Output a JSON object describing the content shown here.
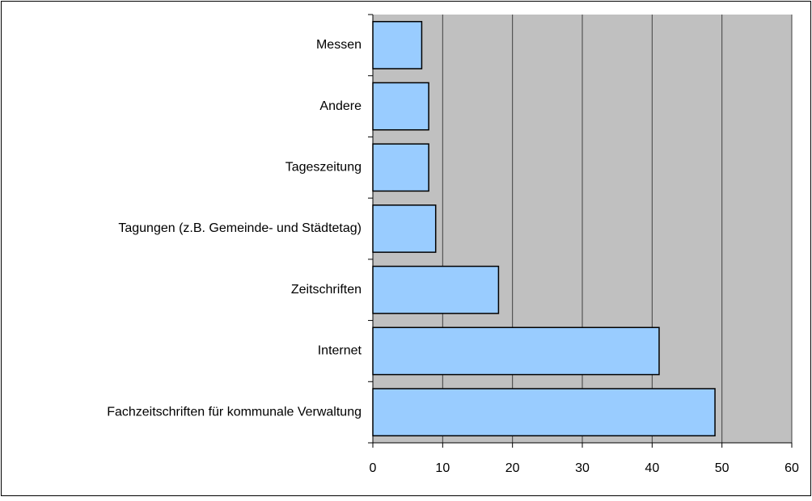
{
  "chart_data": {
    "type": "bar",
    "orientation": "horizontal",
    "categories": [
      "Messen",
      "Andere",
      "Tageszeitung",
      "Tagungen (z.B. Gemeinde- und Städtetag)",
      "Zeitschriften",
      "Internet",
      "Fachzeitschriften für kommunale Verwaltung"
    ],
    "values": [
      7,
      8,
      8,
      9,
      18,
      41,
      49
    ],
    "color": "#99ccff",
    "plot_background": "#c0c0c0",
    "xlim": [
      0,
      60
    ],
    "xticks": [
      0,
      10,
      20,
      30,
      40,
      50,
      60
    ],
    "grid": true
  }
}
